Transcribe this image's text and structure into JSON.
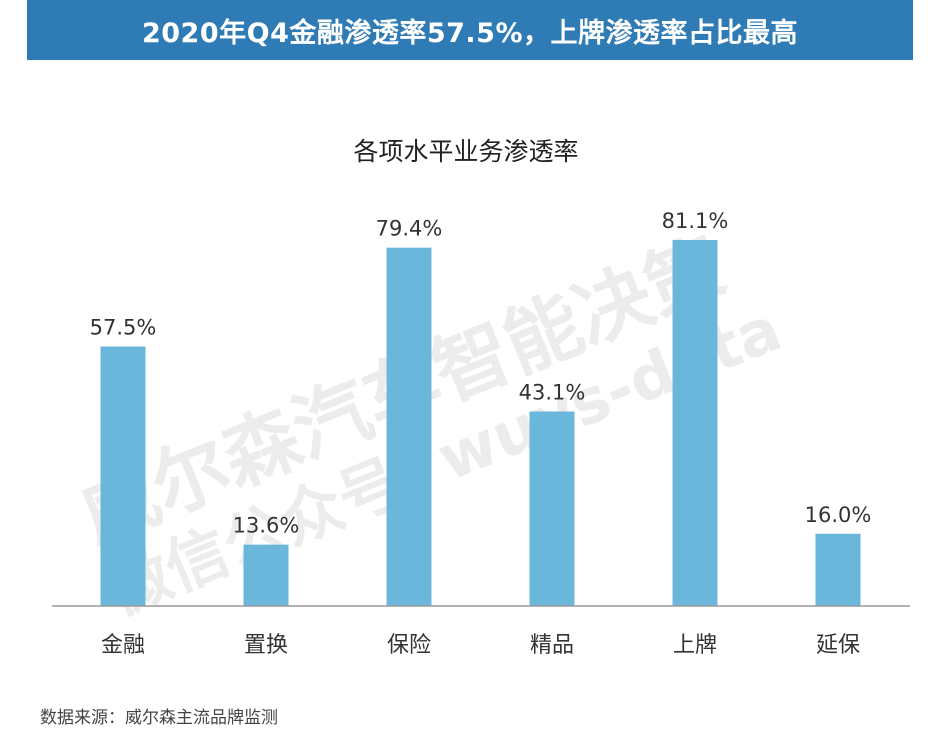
{
  "header": {
    "title": "2020年Q4金融渗透率57.5%，上牌渗透率占比最高"
  },
  "colors": {
    "banner": "#2e7bb5",
    "bar": "#6bb7dc",
    "axis": "#999999",
    "watermark": "#ececec"
  },
  "watermark": {
    "line1": "威尔森汽车智能决策",
    "line2": "微信公众号: wuys-data"
  },
  "source": {
    "text": "数据来源：威尔森主流品牌监测"
  },
  "chart_data": {
    "type": "bar",
    "title": "各项水平业务渗透率",
    "categories": [
      "金融",
      "置换",
      "保险",
      "精品",
      "上牌",
      "延保"
    ],
    "values": [
      57.5,
      13.6,
      79.4,
      43.1,
      81.1,
      16.0
    ],
    "value_labels": [
      "57.5%",
      "13.6%",
      "79.4%",
      "43.1%",
      "81.1%",
      "16.0%"
    ],
    "ylim": [
      0,
      100
    ],
    "grid": false,
    "legend": "none",
    "xlabel": "",
    "ylabel": ""
  }
}
